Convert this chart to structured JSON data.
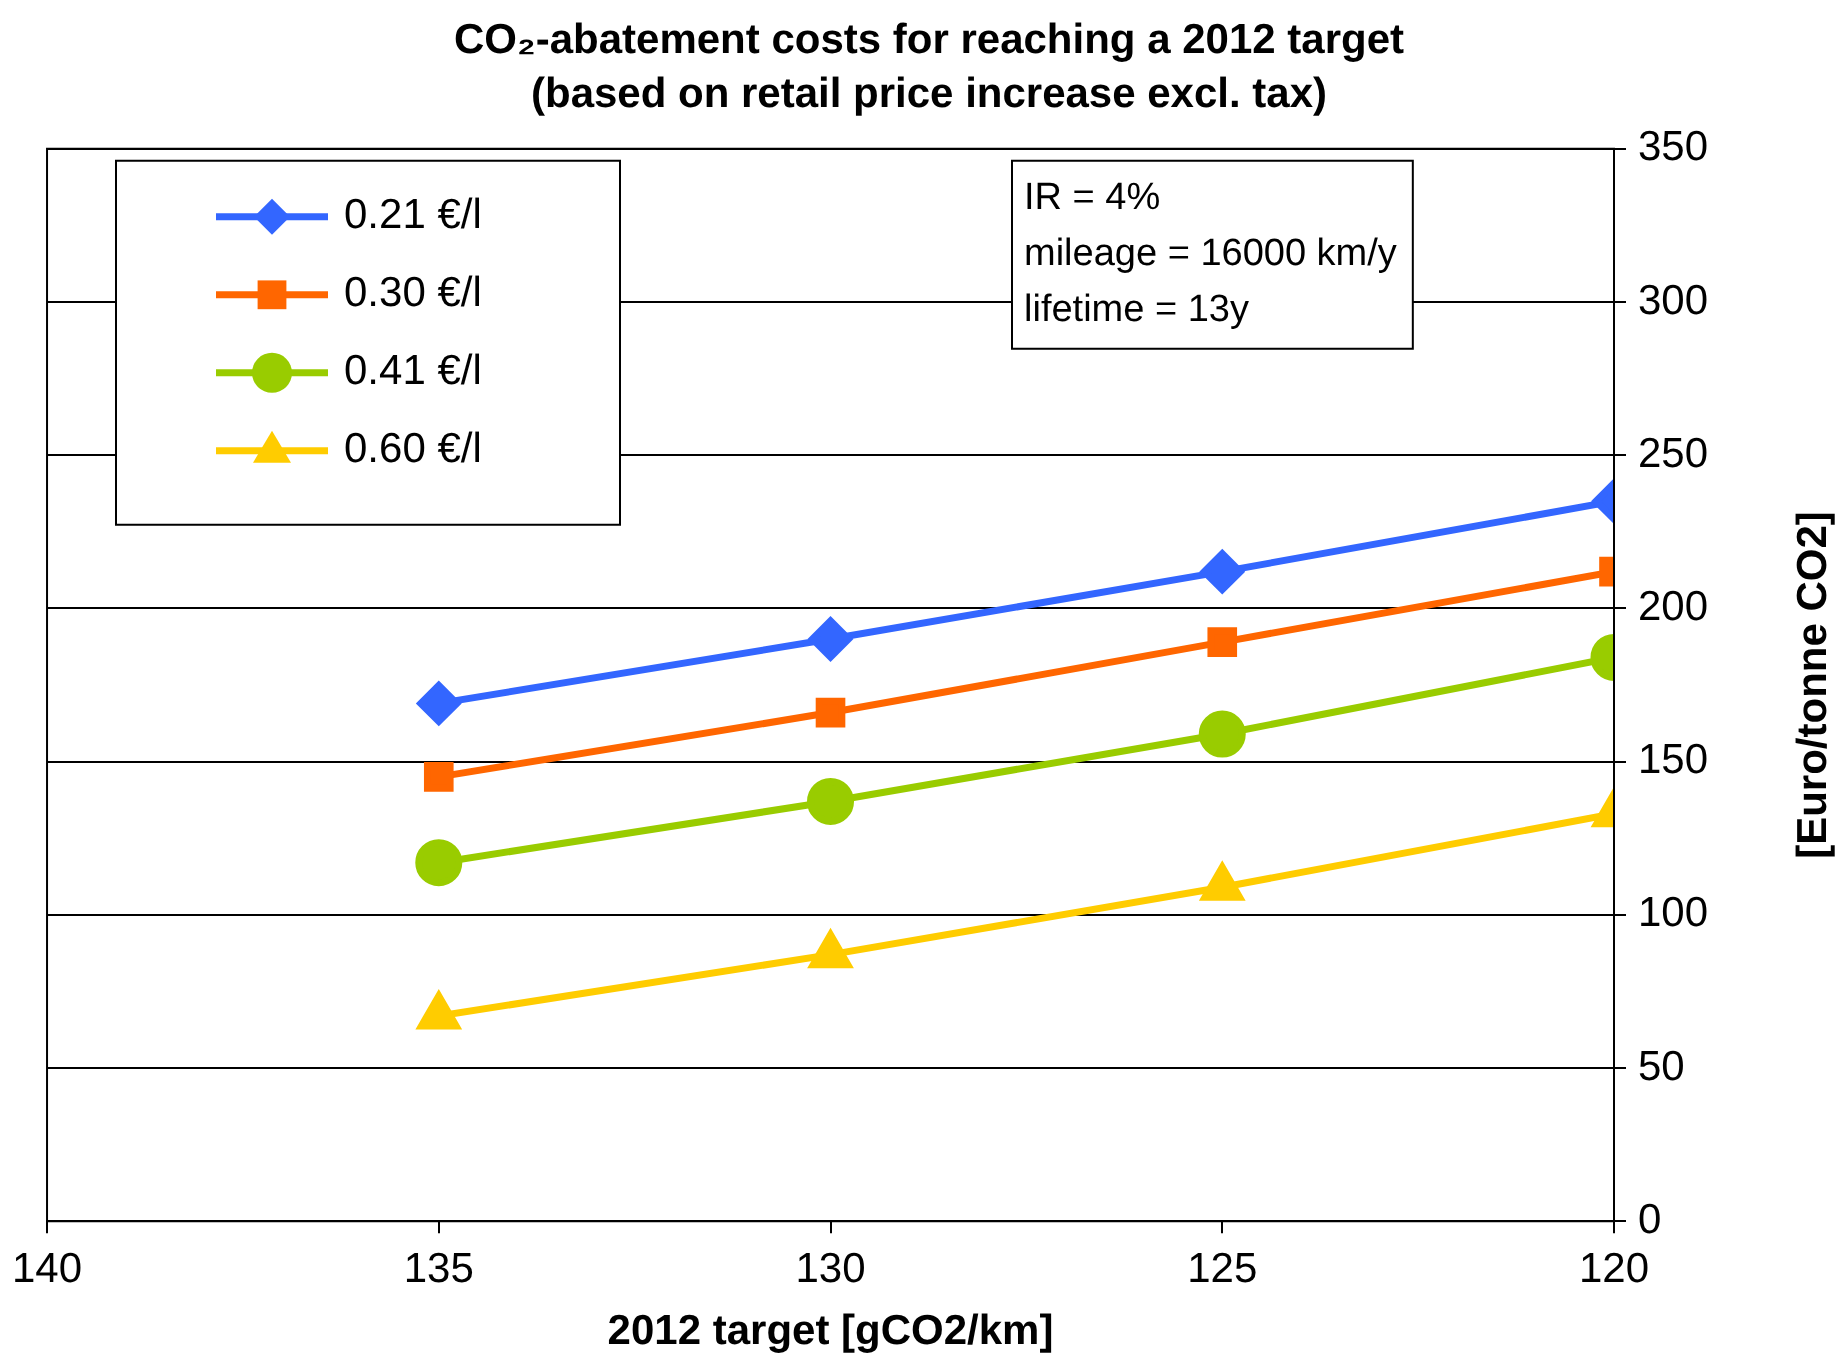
{
  "chart_data": {
    "type": "line",
    "title": "CO₂-abatement costs for reaching a 2012 target",
    "subtitle": "(based on retail price increase excl. tax)",
    "xlabel": "2012 target [gCO2/km]",
    "ylabel": "[Euro/tonne CO2]",
    "x": [
      135,
      130,
      125,
      120
    ],
    "series": [
      {
        "name": "0.21 €/l",
        "color": "#3366ff",
        "marker": "diamond",
        "values": [
          169,
          190,
          212,
          235
        ]
      },
      {
        "name": "0.30 €/l",
        "color": "#ff6600",
        "marker": "square",
        "values": [
          145,
          166,
          189,
          212
        ]
      },
      {
        "name": "0.41 €/l",
        "color": "#99cc00",
        "marker": "circle",
        "values": [
          117,
          137,
          159,
          184
        ]
      },
      {
        "name": "0.60 €/l",
        "color": "#ffcc00",
        "marker": "triangle",
        "values": [
          67,
          87,
          109,
          133
        ]
      }
    ],
    "xlim": [
      140,
      120
    ],
    "xticks": [
      140,
      135,
      130,
      125,
      120
    ],
    "ylim": [
      0,
      350
    ],
    "yticks": [
      0,
      50,
      100,
      150,
      200,
      250,
      300,
      350
    ],
    "grid": "y",
    "legend": "top left",
    "line_style": "solid",
    "annotations": [
      "IR = 4%",
      "mileage = 16000 km/y",
      "lifetime = 13y"
    ]
  }
}
